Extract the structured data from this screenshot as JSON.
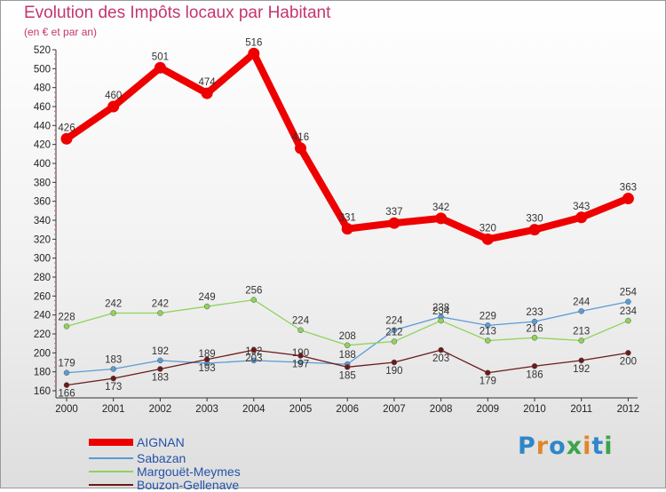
{
  "header": {
    "title": "Evolution des Impôts locaux par Habitant",
    "subtitle": "(en € et par an)"
  },
  "logo": {
    "text": "Proxiti"
  },
  "chart_data": {
    "type": "line",
    "x": [
      "2000",
      "2001",
      "2002",
      "2003",
      "2004",
      "2005",
      "2006",
      "2007",
      "2008",
      "2009",
      "2010",
      "2011",
      "2012"
    ],
    "ylim": [
      160,
      520
    ],
    "yticks": [
      160,
      180,
      200,
      220,
      240,
      260,
      280,
      300,
      320,
      340,
      360,
      380,
      400,
      420,
      440,
      460,
      480,
      500,
      520
    ],
    "grid": false,
    "legend_position": "bottom-left",
    "series": [
      {
        "name": "AIGNAN",
        "color": "#ee0000",
        "values": [
          426,
          460,
          501,
          474,
          516,
          416,
          331,
          337,
          342,
          320,
          330,
          343,
          363
        ],
        "labels": [
          "426",
          "460",
          "501",
          "474",
          "516",
          "416",
          "331",
          "337",
          "342",
          "320",
          "330",
          "343",
          "363"
        ]
      },
      {
        "name": "Sabazan",
        "color": "#5b9bd5",
        "values": [
          179,
          183,
          192,
          189,
          192,
          190,
          188,
          224,
          238,
          229,
          233,
          244,
          254
        ],
        "labels": [
          "179",
          "183",
          "192",
          "189",
          "192",
          "190",
          "188",
          "224",
          "238",
          "229",
          "233",
          "244",
          "254"
        ]
      },
      {
        "name": "Margouët-Meymes",
        "color": "#8fd35a",
        "values": [
          228,
          242,
          242,
          249,
          256,
          224,
          208,
          212,
          234,
          213,
          216,
          213,
          234
        ],
        "labels": [
          "228",
          "242",
          "242",
          "249",
          "256",
          "224",
          "208",
          "212",
          "234",
          "213",
          "216",
          "213",
          "234"
        ]
      },
      {
        "name": "Bouzon-Gellenave",
        "color": "#6b1a1a",
        "values": [
          166,
          173,
          183,
          193,
          203,
          197,
          185,
          190,
          203,
          179,
          186,
          192,
          200
        ],
        "labels": [
          "166",
          "173",
          "183",
          "193",
          "203",
          "197",
          "185",
          "190",
          "203",
          "179",
          "186",
          "192",
          "200"
        ]
      }
    ]
  }
}
